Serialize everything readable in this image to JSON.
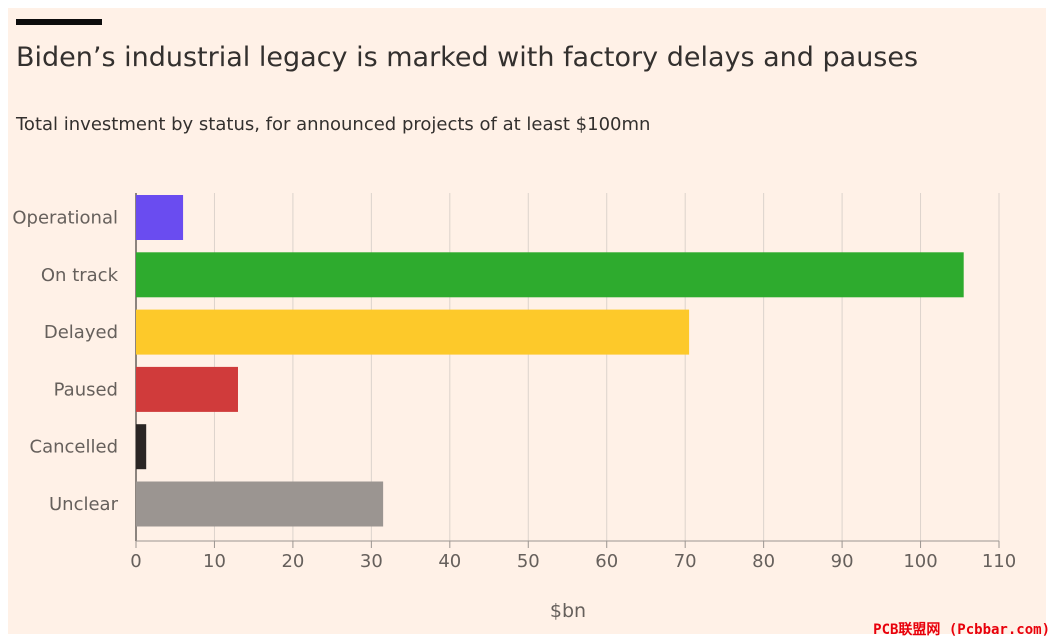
{
  "chart_data": {
    "type": "bar",
    "orientation": "horizontal",
    "title": "Biden’s industrial legacy is marked with factory delays and pauses",
    "subtitle": "Total investment by status, for announced projects of at least $100mn",
    "xlabel": "$bn",
    "ylabel": "",
    "xlim": [
      0,
      110
    ],
    "xticks": [
      0,
      10,
      20,
      30,
      40,
      50,
      60,
      70,
      80,
      90,
      100,
      110
    ],
    "grid": "vertical",
    "categories": [
      "Operational",
      "On track",
      "Delayed",
      "Paused",
      "Cancelled",
      "Unclear"
    ],
    "values": [
      6,
      105.5,
      70.5,
      13,
      1.3,
      31.5
    ],
    "colors": [
      "#6a4cf0",
      "#2eab2e",
      "#fdc92a",
      "#d03b3b",
      "#2a2524",
      "#9b9591"
    ]
  },
  "watermark": "PCB联盟网 (Pcbbar.com)"
}
